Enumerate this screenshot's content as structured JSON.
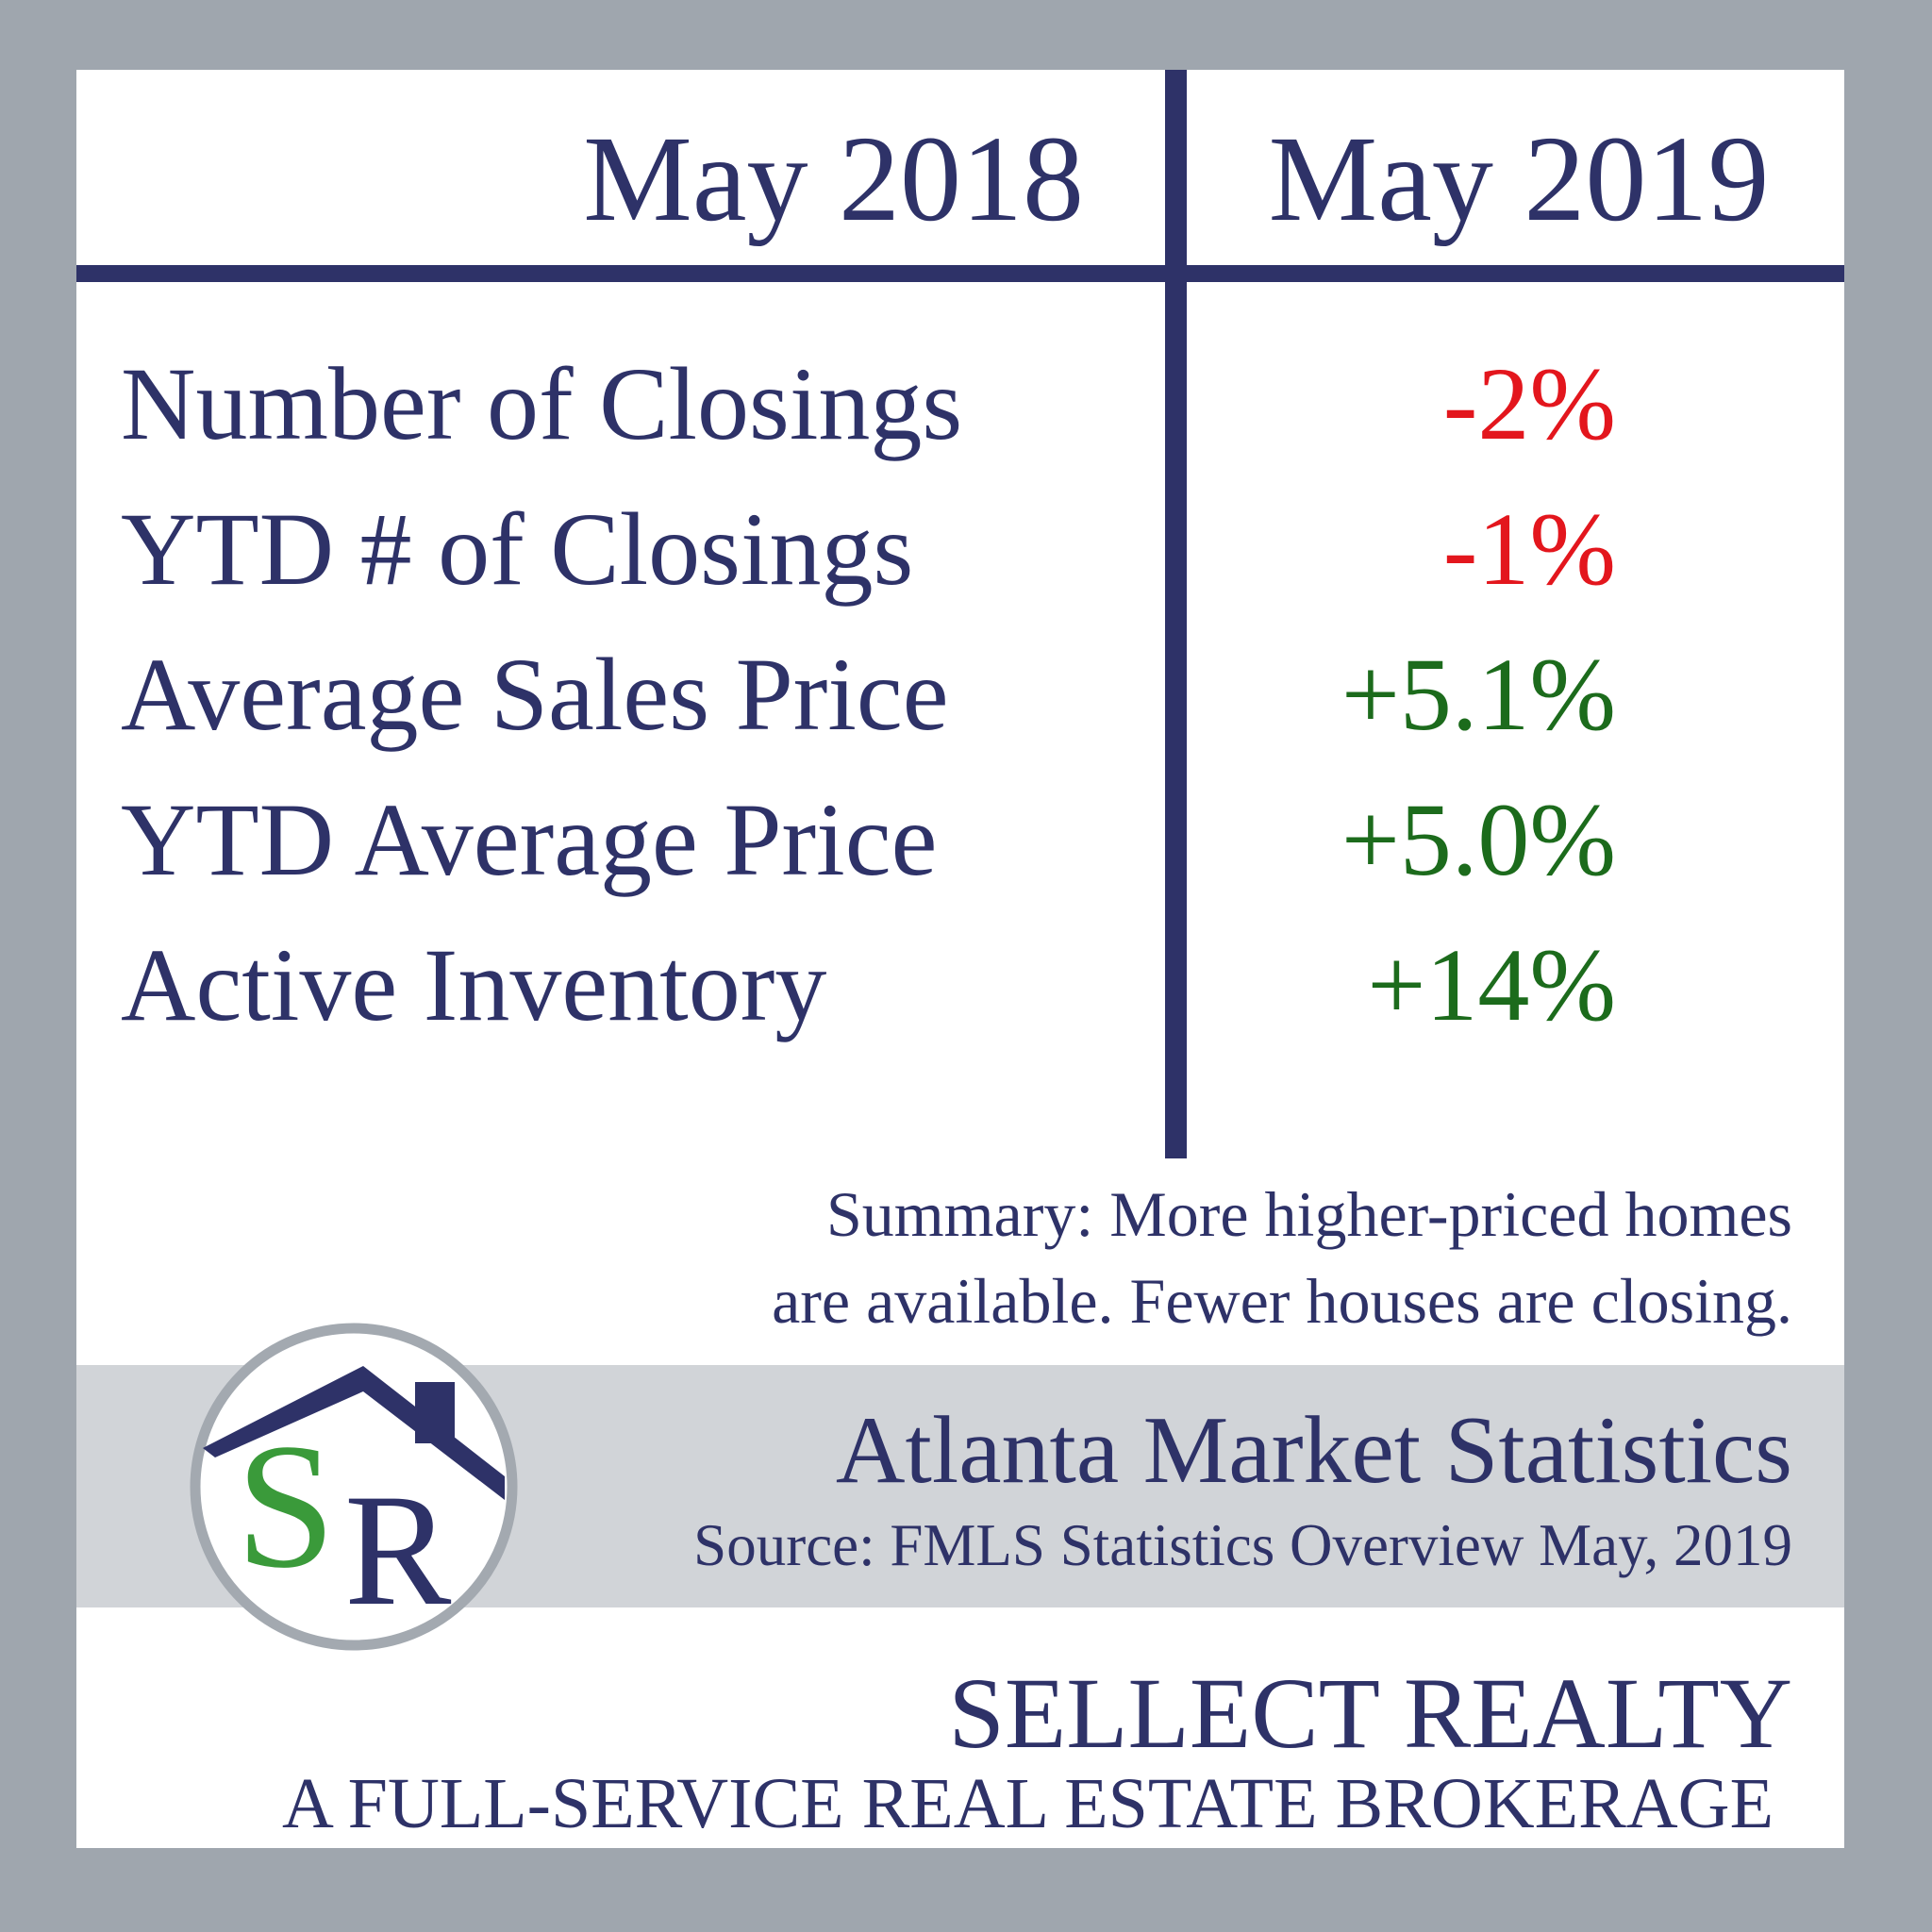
{
  "header": {
    "columns": [
      "May 2018",
      "May 2019"
    ]
  },
  "table": {
    "rows": [
      {
        "label": "Number of Closings",
        "change": "-2%",
        "color": "#e3161d"
      },
      {
        "label": "YTD # of Closings",
        "change": "-1%",
        "color": "#e3161d"
      },
      {
        "label": "Average Sales Price",
        "change": "+5.1%",
        "color": "#1c6b1c"
      },
      {
        "label": "YTD Average Price",
        "change": "+5.0%",
        "color": "#1c6b1c"
      },
      {
        "label": "Active Inventory",
        "change": "+14%",
        "color": "#1c6b1c"
      }
    ]
  },
  "summary": [
    "Summary: More higher-priced homes",
    "are available. Fewer houses are closing."
  ],
  "banner": {
    "title": "Atlanta Market Statistics",
    "source": "Source: FMLS Statistics Overview May, 2019"
  },
  "logo": {
    "initials": [
      "S",
      "R"
    ]
  },
  "footer": {
    "company": "SELLECT REALTY",
    "tagline": "A FULL-SERVICE REAL ESTATE BROKERAGE"
  }
}
